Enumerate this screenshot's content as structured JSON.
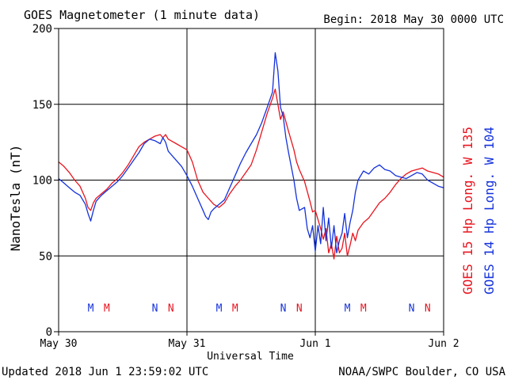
{
  "chart_data": {
    "type": "line",
    "title": "GOES Magnetometer (1 minute data)",
    "begin_label": "Begin:  2018 May 30 0000 UTC",
    "ylabel": "NanoTesla (nT)",
    "xlabel": "Universal Time",
    "ylim": [
      0,
      200
    ],
    "yticks": [
      0,
      50,
      100,
      150,
      200
    ],
    "xlim": [
      0,
      72
    ],
    "xticks": [
      {
        "x": 0,
        "label": "May 30"
      },
      {
        "x": 24,
        "label": "May 31"
      },
      {
        "x": 48,
        "label": "Jun 1"
      },
      {
        "x": 72,
        "label": "Jun 2"
      }
    ],
    "grid": true,
    "legend_placement": "right (vertical text)",
    "series": [
      {
        "name": "GOES 15 Hp  Long. W 135",
        "color": "#e8141e",
        "x": [
          0,
          1,
          2,
          3,
          4,
          5,
          5.5,
          6,
          6.5,
          7,
          8,
          9,
          10,
          11,
          12,
          13,
          14,
          15,
          16,
          17,
          18,
          19,
          19.5,
          20,
          20.5,
          21,
          22,
          23,
          24,
          25,
          26,
          27,
          28,
          29,
          30,
          31,
          32,
          33,
          34,
          35,
          36,
          37,
          38,
          39,
          40,
          40.5,
          41,
          41.5,
          42,
          43,
          44,
          44.5,
          45,
          46,
          47,
          47.5,
          48,
          49,
          49.5,
          50,
          50.5,
          51,
          51.5,
          52,
          52.5,
          53,
          53.5,
          54,
          54.5,
          55,
          55.5,
          56,
          57,
          58,
          59,
          60,
          61,
          62,
          63,
          64,
          65,
          66,
          67,
          68,
          69,
          70,
          71,
          72
        ],
        "y": [
          112,
          109,
          105,
          100,
          96,
          88,
          82,
          80,
          85,
          88,
          91,
          94,
          98,
          101,
          105,
          110,
          116,
          122,
          125,
          127,
          129,
          130,
          128,
          130,
          127,
          126,
          124,
          122,
          120,
          112,
          100,
          92,
          88,
          84,
          82,
          85,
          91,
          96,
          100,
          105,
          110,
          120,
          132,
          144,
          154,
          160,
          150,
          140,
          145,
          132,
          120,
          112,
          107,
          99,
          86,
          79,
          80,
          68,
          61,
          68,
          52,
          58,
          48,
          63,
          52,
          55,
          65,
          50,
          57,
          65,
          60,
          67,
          72,
          75,
          80,
          85,
          88,
          92,
          97,
          101,
          104,
          106,
          107,
          108,
          106,
          105,
          104,
          102
        ]
      },
      {
        "name": "GOES 14 Hp  Long. W 104",
        "color": "#1432dc",
        "x": [
          0,
          1,
          2,
          3,
          4,
          5,
          5.5,
          6,
          6.5,
          7,
          8,
          9,
          10,
          11,
          12,
          13,
          14,
          15,
          16,
          17,
          18,
          19,
          19.5,
          20,
          20.5,
          21,
          22,
          23,
          24,
          25,
          26,
          27,
          27.5,
          28,
          28.5,
          29,
          30,
          31,
          32,
          33,
          34,
          35,
          36,
          37,
          38,
          39,
          40,
          40.5,
          41,
          41.5,
          42,
          42.5,
          43,
          44,
          44.5,
          45,
          46,
          46.5,
          47,
          47.5,
          48,
          48.5,
          49,
          49.5,
          50,
          50.5,
          51,
          51.5,
          52,
          52.5,
          53,
          53.5,
          54,
          54.5,
          55,
          55.5,
          56,
          57,
          58,
          59,
          60,
          61,
          62,
          63,
          64,
          65,
          66,
          67,
          68,
          69,
          70,
          71,
          72
        ],
        "y": [
          101,
          98,
          95,
          92,
          90,
          84,
          78,
          73,
          80,
          86,
          90,
          93,
          96,
          99,
          103,
          108,
          113,
          118,
          124,
          127,
          126,
          124,
          128,
          125,
          119,
          117,
          113,
          109,
          103,
          96,
          88,
          80,
          76,
          74,
          79,
          81,
          84,
          87,
          95,
          103,
          111,
          118,
          124,
          130,
          138,
          148,
          158,
          184,
          172,
          148,
          142,
          128,
          118,
          100,
          88,
          80,
          82,
          68,
          62,
          70,
          53,
          70,
          58,
          82,
          60,
          75,
          55,
          70,
          52,
          60,
          65,
          78,
          62,
          72,
          80,
          92,
          100,
          106,
          104,
          108,
          110,
          107,
          106,
          103,
          102,
          101,
          103,
          105,
          104,
          100,
          98,
          96,
          95
        ]
      }
    ],
    "markers": [
      {
        "letter": "M",
        "x": 6.0,
        "color": "#1432dc"
      },
      {
        "letter": "M",
        "x": 9.0,
        "color": "#e8141e"
      },
      {
        "letter": "N",
        "x": 18.0,
        "color": "#1432dc"
      },
      {
        "letter": "N",
        "x": 21.0,
        "color": "#e8141e"
      },
      {
        "letter": "M",
        "x": 30.0,
        "color": "#1432dc"
      },
      {
        "letter": "M",
        "x": 33.0,
        "color": "#e8141e"
      },
      {
        "letter": "N",
        "x": 42.0,
        "color": "#1432dc"
      },
      {
        "letter": "N",
        "x": 45.0,
        "color": "#e8141e"
      },
      {
        "letter": "M",
        "x": 54.0,
        "color": "#1432dc"
      },
      {
        "letter": "M",
        "x": 57.0,
        "color": "#e8141e"
      },
      {
        "letter": "N",
        "x": 66.0,
        "color": "#1432dc"
      },
      {
        "letter": "N",
        "x": 69.0,
        "color": "#e8141e"
      }
    ],
    "marker_y": 16
  },
  "footer": {
    "updated": "Updated 2018 Jun  1 23:59:02 UTC",
    "credit": "NOAA/SWPC Boulder, CO USA"
  }
}
